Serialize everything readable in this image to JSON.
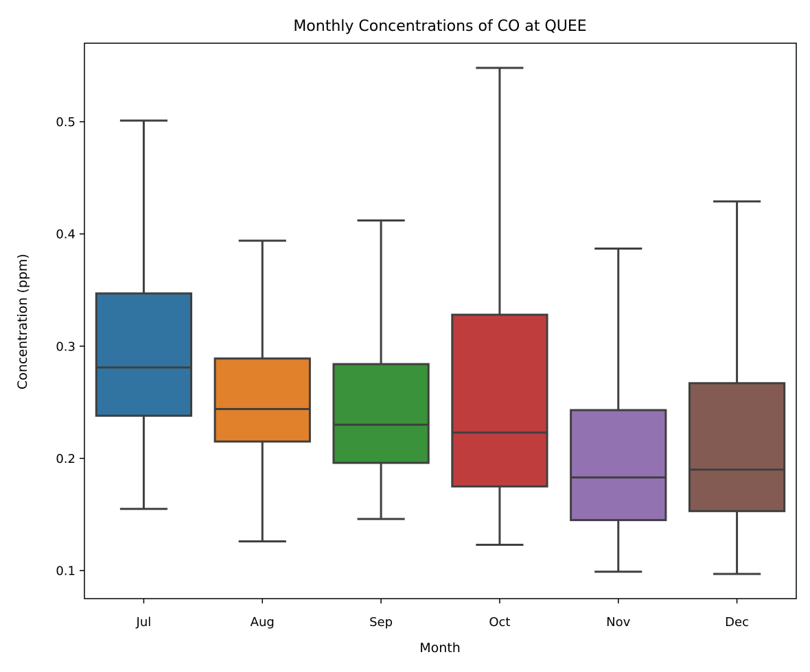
{
  "chart_data": {
    "type": "box",
    "title": "Monthly Concentrations of CO at QUEE",
    "xlabel": "Month",
    "ylabel": "Concentration (ppm)",
    "ylim": [
      0.075,
      0.57
    ],
    "yticks": [
      "0.1",
      "0.2",
      "0.3",
      "0.4",
      "0.5"
    ],
    "ytick_values": [
      0.1,
      0.2,
      0.3,
      0.4,
      0.5
    ],
    "grid": false,
    "categories": [
      "Jul",
      "Aug",
      "Sep",
      "Oct",
      "Nov",
      "Dec"
    ],
    "boxes": [
      {
        "whisker_low": 0.155,
        "q1": 0.238,
        "median": 0.281,
        "q3": 0.347,
        "whisker_high": 0.501,
        "color": "#3274a1"
      },
      {
        "whisker_low": 0.126,
        "q1": 0.215,
        "median": 0.244,
        "q3": 0.289,
        "whisker_high": 0.394,
        "color": "#e1812c"
      },
      {
        "whisker_low": 0.146,
        "q1": 0.196,
        "median": 0.23,
        "q3": 0.284,
        "whisker_high": 0.412,
        "color": "#3a923a"
      },
      {
        "whisker_low": 0.123,
        "q1": 0.175,
        "median": 0.223,
        "q3": 0.328,
        "whisker_high": 0.548,
        "color": "#c03d3e"
      },
      {
        "whisker_low": 0.099,
        "q1": 0.145,
        "median": 0.183,
        "q3": 0.243,
        "whisker_high": 0.387,
        "color": "#9372b2"
      },
      {
        "whisker_low": 0.097,
        "q1": 0.153,
        "median": 0.19,
        "q3": 0.267,
        "whisker_high": 0.429,
        "color": "#845b53"
      }
    ]
  }
}
